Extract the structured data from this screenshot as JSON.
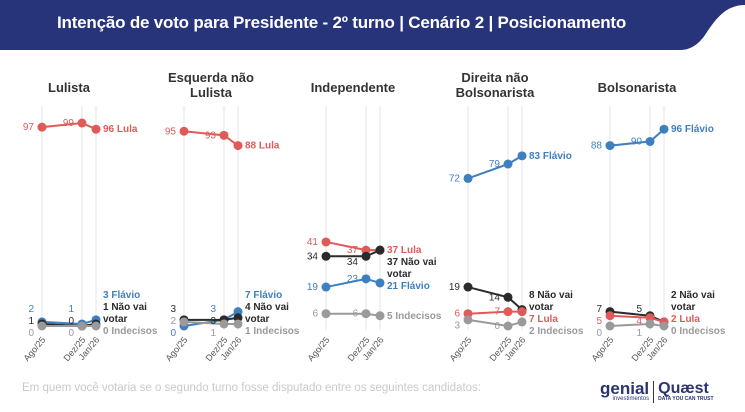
{
  "header": {
    "title": "Intenção de voto para Presidente - 2º turno | Cenário 2 | Posicionamento"
  },
  "footer": {
    "question": "Em quem você votaria se o segundo turno fosse disputado entre os seguintes candidatos:",
    "logo_genial": "genial",
    "logo_genial_sub": "investimentos",
    "logo_quaest": "Quæst",
    "logo_quaest_sub": "DATA YOU CAN TRUST"
  },
  "colors": {
    "header_bg": "#27347a",
    "lula": "#e05a5a",
    "flavio": "#3f7fbf",
    "nao_vai": "#2b2b2b",
    "indecisos": "#9a9a9a"
  },
  "chart_data": {
    "type": "line",
    "x": [
      "Ago/25",
      "Dez/25",
      "Jan/26"
    ],
    "ylim": [
      0,
      100
    ],
    "grid": "vertical",
    "panels": [
      {
        "title": "Lulista",
        "series": [
          {
            "name": "Lula",
            "key": "lula",
            "values": [
              97,
              99,
              96
            ],
            "end_label": "96 Lula"
          },
          {
            "name": "Flávio",
            "key": "flavio",
            "values": [
              2,
              1,
              3
            ],
            "end_label": "3 Flávio"
          },
          {
            "name": "Não vai votar",
            "key": "nao_vai",
            "values": [
              1,
              0,
              1
            ],
            "end_label": "1 Não vai votar"
          },
          {
            "name": "Indecisos",
            "key": "indecisos",
            "values": [
              0,
              0,
              0
            ],
            "end_label": "0 Indecisos"
          }
        ]
      },
      {
        "title": "Esquerda não Lulista",
        "series": [
          {
            "name": "Lula",
            "key": "lula",
            "values": [
              95,
              93,
              88
            ],
            "end_label": "88 Lula"
          },
          {
            "name": "Flávio",
            "key": "flavio",
            "values": [
              0,
              3,
              7
            ],
            "end_label": "7 Flávio"
          },
          {
            "name": "Não vai votar",
            "key": "nao_vai",
            "values": [
              3,
              3,
              4
            ],
            "end_label": "4 Não vai votar"
          },
          {
            "name": "Indecisos",
            "key": "indecisos",
            "values": [
              2,
              1,
              1
            ],
            "end_label": "1 Indecisos"
          }
        ]
      },
      {
        "title": "Independente",
        "series": [
          {
            "name": "Lula",
            "key": "lula",
            "values": [
              41,
              37,
              37
            ],
            "end_label": "37 Lula"
          },
          {
            "name": "Não vai votar",
            "key": "nao_vai",
            "values": [
              34,
              34,
              37
            ],
            "end_label": "37 Não vai votar"
          },
          {
            "name": "Flávio",
            "key": "flavio",
            "values": [
              19,
              23,
              21
            ],
            "end_label": "21 Flávio"
          },
          {
            "name": "Indecisos",
            "key": "indecisos",
            "values": [
              6,
              6,
              5
            ],
            "end_label": "5 Indecisos"
          }
        ]
      },
      {
        "title": "Direita não Bolsonarista",
        "series": [
          {
            "name": "Flávio",
            "key": "flavio",
            "values": [
              72,
              79,
              83
            ],
            "end_label": "83 Flávio"
          },
          {
            "name": "Não vai votar",
            "key": "nao_vai",
            "values": [
              19,
              14,
              8
            ],
            "end_label": "8 Não vai votar"
          },
          {
            "name": "Lula",
            "key": "lula",
            "values": [
              6,
              7,
              7
            ],
            "end_label": "7 Lula"
          },
          {
            "name": "Indecisos",
            "key": "indecisos",
            "values": [
              3,
              0,
              2
            ],
            "end_label": "2 Indecisos"
          }
        ]
      },
      {
        "title": "Bolsonarista",
        "series": [
          {
            "name": "Flávio",
            "key": "flavio",
            "values": [
              88,
              90,
              96
            ],
            "end_label": "96 Flávio"
          },
          {
            "name": "Não vai votar",
            "key": "nao_vai",
            "values": [
              7,
              5,
              2
            ],
            "end_label": "2 Não vai votar"
          },
          {
            "name": "Lula",
            "key": "lula",
            "values": [
              5,
              4,
              2
            ],
            "end_label": "2 Lula"
          },
          {
            "name": "Indecisos",
            "key": "indecisos",
            "values": [
              0,
              1,
              0
            ],
            "end_label": "0 Indecisos"
          }
        ]
      }
    ]
  }
}
